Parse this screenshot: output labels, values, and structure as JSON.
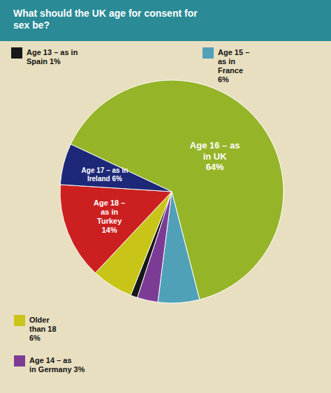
{
  "chart_data": {
    "type": "pie",
    "title": "What should the UK age for consent for\nsex be?",
    "categories": [
      "Age 16 – as\nin UK\n64%",
      "Age 15 –\nas in\nFrance\n6%",
      "Age 14 – as\nin Germany 3%",
      "Age 13 – as in\nSpain 1%",
      "Older\nthan 18\n6%",
      "Age 18 –\nas in\nTurkey\n14%",
      "Age 17 – as in\nIreland 6%"
    ],
    "values": [
      64,
      6,
      3,
      1,
      6,
      14,
      6
    ],
    "colors": [
      "#96b428",
      "#50a0b8",
      "#7c3c96",
      "#181818",
      "#c8c418",
      "#cc2020",
      "#1e2878"
    ]
  }
}
